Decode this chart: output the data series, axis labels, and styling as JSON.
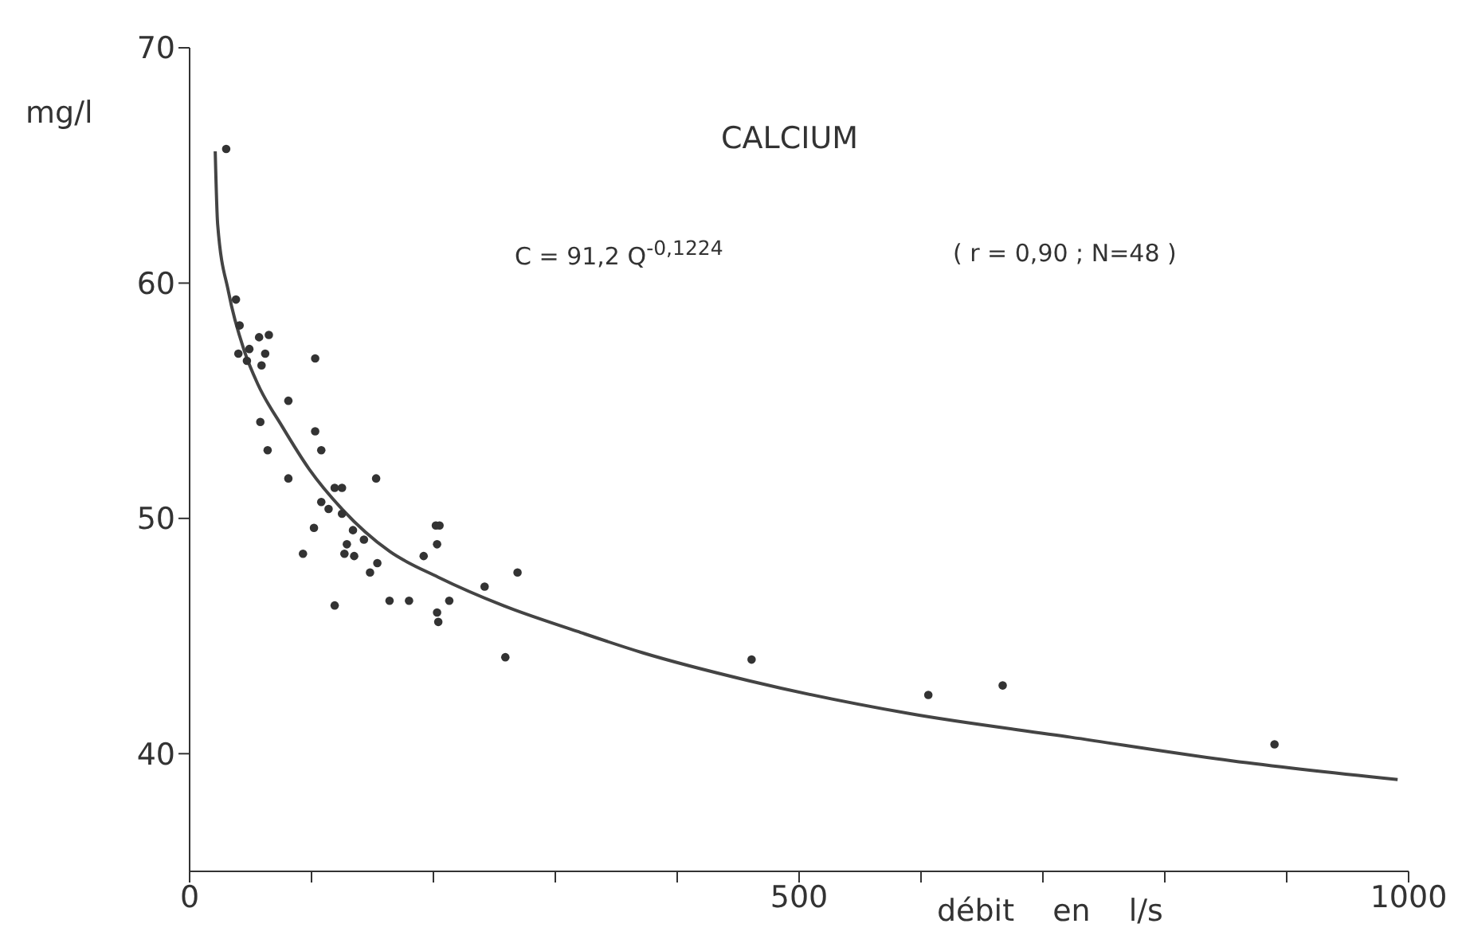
{
  "chart_data": {
    "type": "scatter",
    "title": "CALCIUM",
    "xlabel": "débit en l/s",
    "ylabel": "mg/l",
    "annotations": [
      "C = 91,2 Q$^{-0,1224}$",
      "( r = 0,90 ; N=48 )"
    ],
    "xlim": [
      0,
      1000
    ],
    "xticks": [
      0,
      {
        "value": 100,
        "label": null
      },
      {
        "value": 200,
        "label": null
      },
      {
        "value": 300,
        "label": null
      },
      {
        "value": 400,
        "label": null
      },
      500,
      {
        "value": 600,
        "label": null
      },
      {
        "value": 700,
        "label": null
      },
      {
        "value": 800,
        "label": null
      },
      {
        "value": 900,
        "label": null
      },
      1000
    ],
    "ylim": [
      35,
      70
    ],
    "yticks": [
      40,
      50,
      60,
      70
    ],
    "line_style": "solid",
    "series": [
      {
        "marker": "circle",
        "color": "#333333",
        "x": [
          30,
          38,
          41,
          57,
          65,
          40,
          49,
          62,
          47,
          59,
          103,
          81,
          58,
          103,
          108,
          64,
          81,
          153,
          119,
          125,
          108,
          114,
          125,
          102,
          134,
          143,
          129,
          202,
          205,
          203,
          192,
          93,
          127,
          135,
          154,
          148,
          119,
          164,
          180,
          213,
          203,
          204,
          242,
          269,
          259,
          461,
          606,
          667,
          890
        ],
        "values": [
          65.7,
          59.3,
          58.2,
          57.7,
          57.8,
          57.0,
          57.2,
          57.0,
          56.7,
          56.5,
          56.8,
          55.0,
          54.1,
          53.7,
          52.9,
          52.9,
          51.7,
          51.7,
          51.3,
          51.3,
          50.7,
          50.4,
          50.2,
          49.6,
          49.5,
          49.1,
          48.9,
          49.7,
          49.7,
          48.9,
          48.4,
          48.5,
          48.5,
          48.4,
          48.1,
          47.7,
          46.3,
          46.5,
          46.5,
          46.5,
          46.0,
          45.6,
          47.1,
          47.7,
          44.1,
          44.0,
          42.5,
          42.9,
          40.4
        ]
      },
      {
        "type": "line",
        "color": "#444444",
        "x": [
          21,
          23,
          32,
          45,
          56,
          76,
          98,
          125,
          164,
          204,
          257,
          318,
          371,
          459,
          591,
          723,
          855,
          991
        ],
        "values": [
          65.6,
          62.5,
          59.6,
          57.1,
          55.7,
          53.9,
          52.1,
          50.4,
          48.6,
          47.5,
          46.3,
          45.2,
          44.3,
          43.1,
          41.7,
          40.7,
          39.7,
          38.9
        ]
      }
    ]
  }
}
